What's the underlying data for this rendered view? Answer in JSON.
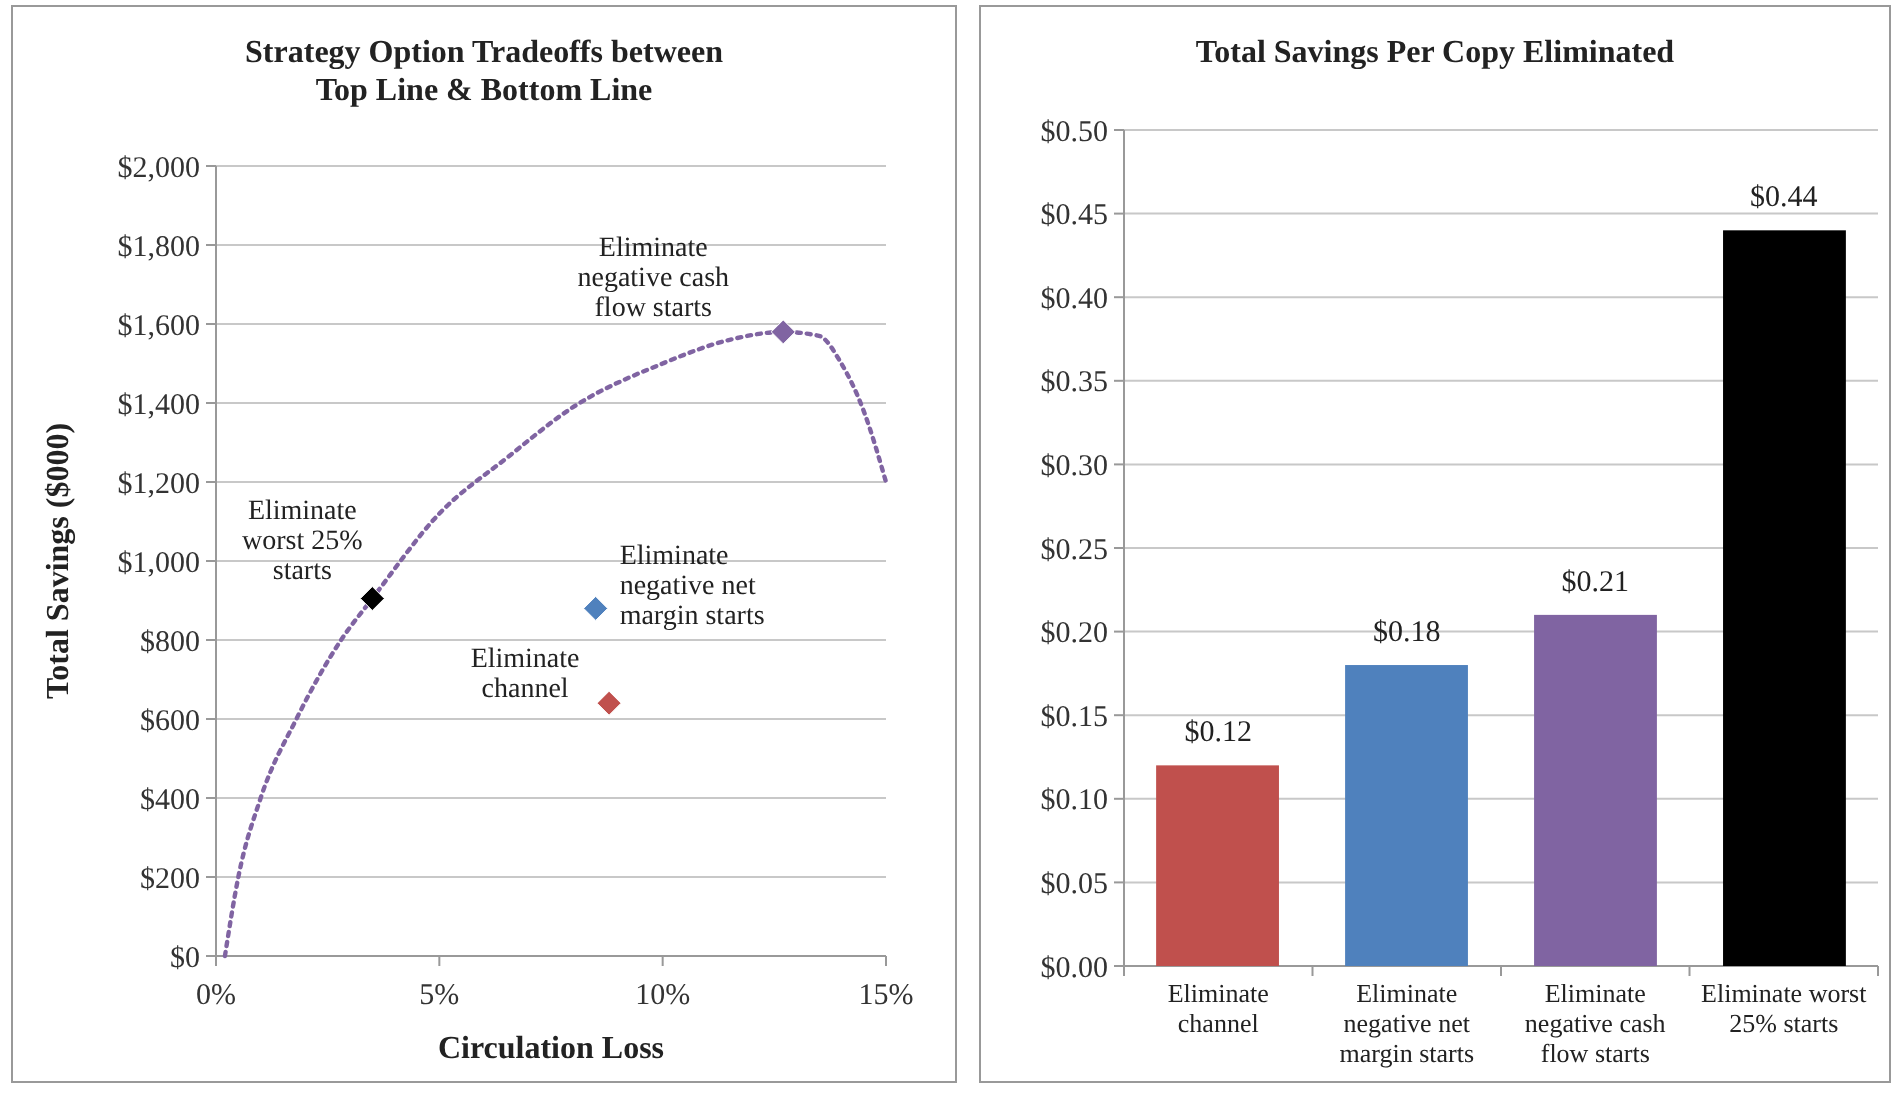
{
  "chart_data": [
    {
      "type": "scatter",
      "title": "Strategy Option Tradeoffs between\nTop Line & Bottom Line",
      "xlabel": "Circulation Loss",
      "ylabel": "Total Savings ($000)",
      "xlim": [
        0,
        15
      ],
      "xticks": [
        {
          "value": 0,
          "label": "0%"
        },
        {
          "value": 5,
          "label": "5%"
        },
        {
          "value": 10,
          "label": "10%"
        },
        {
          "value": 15,
          "label": "15%"
        }
      ],
      "ylim": [
        0,
        2000
      ],
      "yticks": [
        {
          "value": 0,
          "label": "$0"
        },
        {
          "value": 200,
          "label": "$200"
        },
        {
          "value": 400,
          "label": "$400"
        },
        {
          "value": 600,
          "label": "$600"
        },
        {
          "value": 800,
          "label": "$800"
        },
        {
          "value": 1000,
          "label": "$1,000"
        },
        {
          "value": 1200,
          "label": "$1,200"
        },
        {
          "value": 1400,
          "label": "$1,400"
        },
        {
          "value": 1600,
          "label": "$1,600"
        },
        {
          "value": 1800,
          "label": "$1,800"
        },
        {
          "value": 2000,
          "label": "$2,000"
        }
      ],
      "grid": "y",
      "series": [
        {
          "type": "line",
          "color": "#8064a2",
          "line_style": "dotted",
          "marker": "none",
          "x": [
            0.2,
            0.5,
            1,
            1.8,
            2.8,
            3.5,
            5,
            6.5,
            8,
            10,
            11.5,
            12.7,
            13.5,
            14,
            14.5,
            15
          ],
          "values": [
            0,
            200,
            400,
            600,
            800,
            905,
            1120,
            1260,
            1390,
            1500,
            1560,
            1580,
            1570,
            1500,
            1380,
            1200
          ]
        },
        {
          "type": "scatter",
          "marker": "diamond",
          "color": "#000000",
          "x": [
            3.5
          ],
          "values": [
            905
          ]
        },
        {
          "type": "scatter",
          "marker": "diamond",
          "color": "#4f81bd",
          "x": [
            8.5
          ],
          "values": [
            880
          ]
        },
        {
          "type": "scatter",
          "marker": "diamond",
          "color": "#c0504d",
          "x": [
            8.8
          ],
          "values": [
            640
          ]
        },
        {
          "type": "scatter",
          "marker": "diamond",
          "color": "#8064a2",
          "x": [
            12.7
          ],
          "values": [
            1580
          ]
        }
      ],
      "annotations": [
        {
          "text": "Eliminate\nworst 25%\nstarts",
          "x": 3.5,
          "y": 905
        },
        {
          "text": "Eliminate\nnegative net\nmargin starts",
          "x": 8.5,
          "y": 880
        },
        {
          "text": "Eliminate\nchannel",
          "x": 8.8,
          "y": 640
        },
        {
          "text": "Eliminate\nnegative cash\nflow starts",
          "x": 12.7,
          "y": 1580
        }
      ]
    },
    {
      "type": "bar",
      "title": "Total Savings Per Copy Eliminated",
      "categories": [
        "Eliminate\nchannel",
        "Eliminate\nnegative net\nmargin starts",
        "Eliminate\nnegative cash\nflow starts",
        "Eliminate worst\n25% starts"
      ],
      "values": [
        0.12,
        0.18,
        0.21,
        0.44
      ],
      "colors": [
        "#c0504d",
        "#4f81bd",
        "#8064a2",
        "#000000"
      ],
      "value_labels": [
        "$0.12",
        "$0.18",
        "$0.21",
        "$0.44"
      ],
      "ylim": [
        0,
        0.5
      ],
      "yticks": [
        {
          "value": 0,
          "label": "$0.00"
        },
        {
          "value": 0.05,
          "label": "$0.05"
        },
        {
          "value": 0.1,
          "label": "$0.10"
        },
        {
          "value": 0.15,
          "label": "$0.15"
        },
        {
          "value": 0.2,
          "label": "$0.20"
        },
        {
          "value": 0.25,
          "label": "$0.25"
        },
        {
          "value": 0.3,
          "label": "$0.30"
        },
        {
          "value": 0.35,
          "label": "$0.35"
        },
        {
          "value": 0.4,
          "label": "$0.40"
        },
        {
          "value": 0.45,
          "label": "$0.45"
        },
        {
          "value": 0.5,
          "label": "$0.50"
        }
      ],
      "grid": "y"
    }
  ]
}
